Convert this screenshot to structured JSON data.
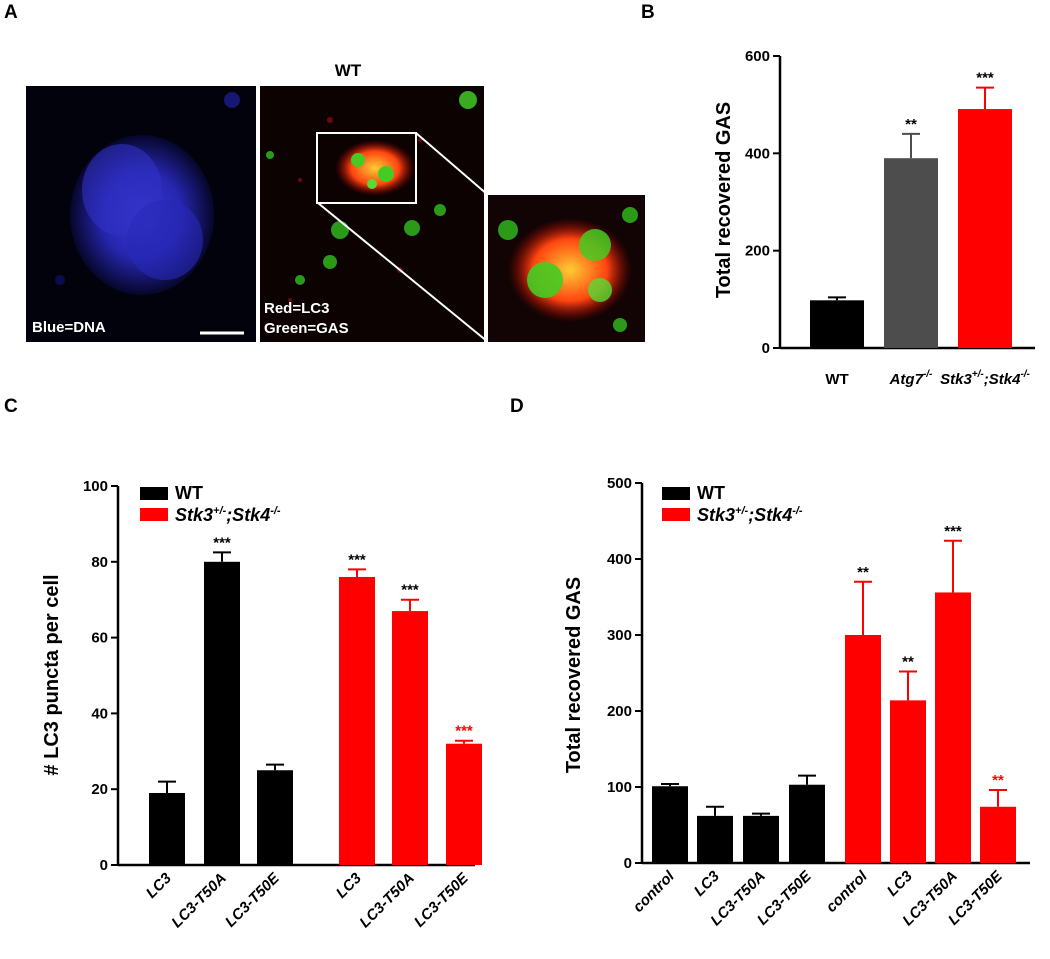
{
  "colors": {
    "black": "#000000",
    "gray": "#4d4d4d",
    "red": "#ff0000",
    "sig_red": "#ff0000"
  },
  "panel_labels": {
    "a": "A",
    "b": "B",
    "c": "C",
    "d": "D"
  },
  "panel_a": {
    "title": "WT",
    "left_label": "Blue=DNA",
    "middle_label_1": "Red=LC3",
    "middle_label_2": "Green=GAS"
  },
  "legend": {
    "wt": "WT",
    "ko_main": "Stk3",
    "ko_sup1": "+/-",
    "ko_sep": ";Stk4",
    "ko_sup2": "-/-"
  },
  "chart_data": [
    {
      "id": "B",
      "type": "bar",
      "ylabel": "Total recovered GAS",
      "ylim": [
        0,
        600
      ],
      "yticks": [
        0,
        200,
        400,
        600
      ],
      "bars": [
        {
          "label": "WT",
          "label_sup": "",
          "label_tail": "",
          "label_sup2": "",
          "italic": false,
          "value": 98,
          "error": 6,
          "color": "black",
          "sig": "",
          "sig_color": "black"
        },
        {
          "label": "Atg7",
          "label_sup": "-/-",
          "label_tail": "",
          "label_sup2": "",
          "italic": true,
          "value": 390,
          "error": 50,
          "color": "gray",
          "sig": "**",
          "sig_color": "black"
        },
        {
          "label": "Stk3",
          "label_sup": "+/-",
          "label_tail": ";Stk4",
          "label_sup2": "-/-",
          "italic": true,
          "value": 491,
          "error": 44,
          "color": "red",
          "sig": "***",
          "sig_color": "black"
        }
      ]
    },
    {
      "id": "C",
      "type": "bar",
      "ylabel": "# LC3 puncta per cell",
      "ylim": [
        0,
        100
      ],
      "yticks": [
        0,
        20,
        40,
        60,
        80,
        100
      ],
      "legend": true,
      "bars": [
        {
          "label": "LC3",
          "italic": true,
          "value": 19,
          "error": 3,
          "color": "black",
          "sig": "",
          "sig_color": "black"
        },
        {
          "label": "LC3-T50A",
          "italic": true,
          "value": 80,
          "error": 2.5,
          "color": "black",
          "sig": "***",
          "sig_color": "black"
        },
        {
          "label": "LC3-T50E",
          "italic": true,
          "value": 25,
          "error": 1.5,
          "color": "black",
          "sig": "",
          "sig_color": "black"
        },
        {
          "label": "LC3",
          "italic": true,
          "value": 76,
          "error": 2,
          "color": "red",
          "sig": "***",
          "sig_color": "black"
        },
        {
          "label": "LC3-T50A",
          "italic": true,
          "value": 67,
          "error": 3,
          "color": "red",
          "sig": "***",
          "sig_color": "black"
        },
        {
          "label": "LC3-T50E",
          "italic": true,
          "value": 32,
          "error": 0.8,
          "color": "red",
          "sig": "***",
          "sig_color": "red"
        }
      ]
    },
    {
      "id": "D",
      "type": "bar",
      "ylabel": "Total recovered GAS",
      "ylim": [
        0,
        500
      ],
      "yticks": [
        0,
        100,
        200,
        300,
        400,
        500
      ],
      "legend": true,
      "bars": [
        {
          "label": "control",
          "italic": true,
          "value": 101,
          "error": 3,
          "color": "black",
          "sig": "",
          "sig_color": "black"
        },
        {
          "label": "LC3",
          "italic": true,
          "value": 62,
          "error": 12,
          "color": "black",
          "sig": "",
          "sig_color": "black"
        },
        {
          "label": "LC3-T50A",
          "italic": true,
          "value": 62,
          "error": 3,
          "color": "black",
          "sig": "",
          "sig_color": "black"
        },
        {
          "label": "LC3-T50E",
          "italic": true,
          "value": 103,
          "error": 12,
          "color": "black",
          "sig": "",
          "sig_color": "black"
        },
        {
          "label": "control",
          "italic": true,
          "value": 300,
          "error": 70,
          "color": "red",
          "sig": "**",
          "sig_color": "black"
        },
        {
          "label": "LC3",
          "italic": true,
          "value": 214,
          "error": 38,
          "color": "red",
          "sig": "**",
          "sig_color": "black"
        },
        {
          "label": "LC3-T50A",
          "italic": true,
          "value": 356,
          "error": 68,
          "color": "red",
          "sig": "***",
          "sig_color": "black"
        },
        {
          "label": "LC3-T50E",
          "italic": true,
          "value": 74,
          "error": 22,
          "color": "red",
          "sig": "**",
          "sig_color": "red"
        }
      ]
    }
  ]
}
